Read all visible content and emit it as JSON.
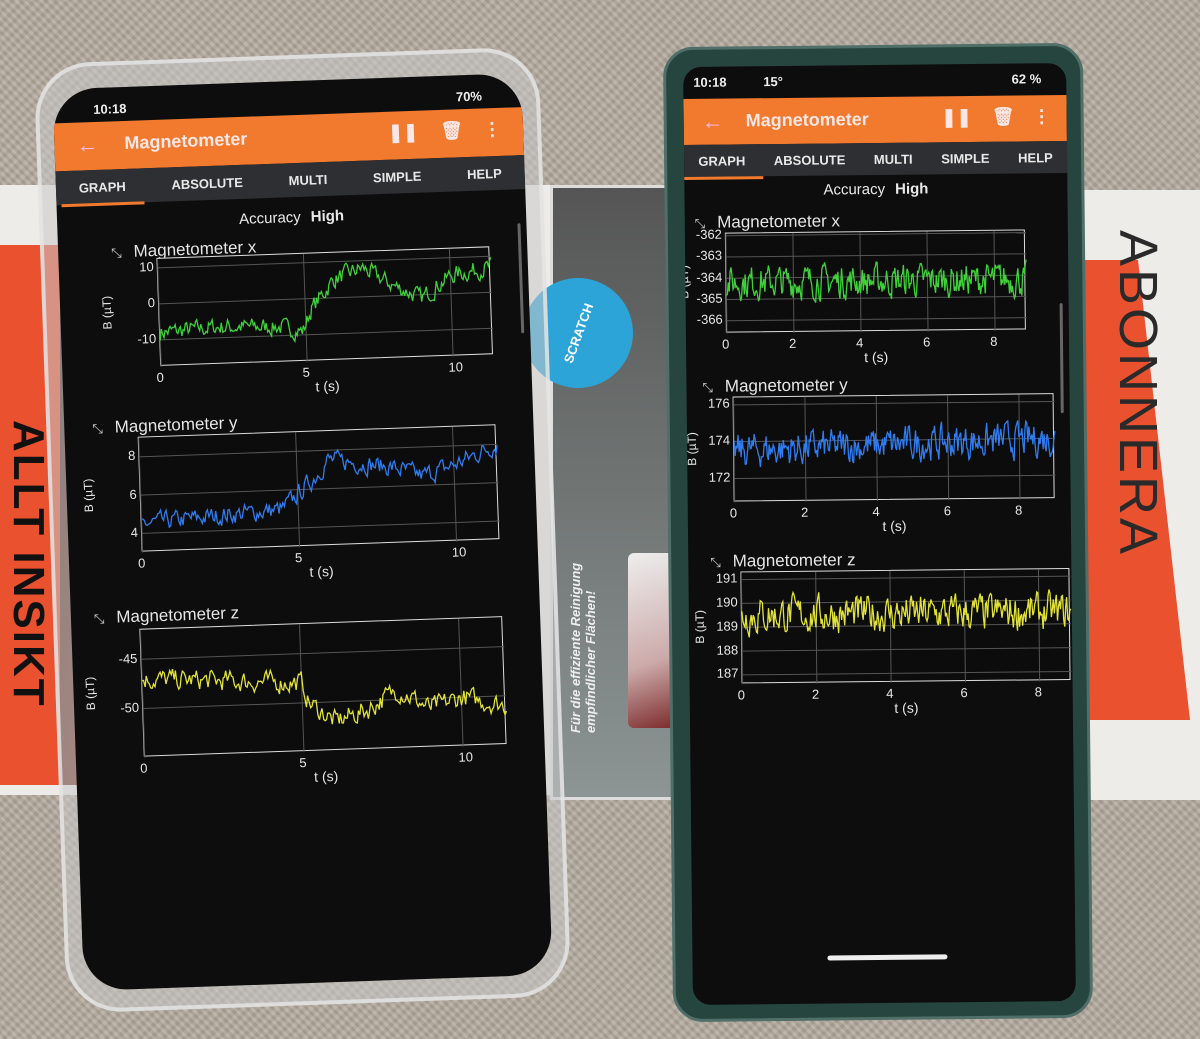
{
  "background": {
    "book_left_text": "ALLT INSIKT",
    "book_right_text": "ABONNERA",
    "cloth_badge": "SCRATCH",
    "cloth_text": "Für die effiziente Reinigung empfindlicher Flächen!"
  },
  "phones": [
    {
      "status_time": "10:18",
      "status_right": "70%",
      "toolbar": {
        "title": "Magnetometer",
        "back_icon": "arrow-left",
        "pause_icon": "pause",
        "delete_icon": "trash",
        "menu_icon": "more-vertical"
      },
      "tabs": [
        "GRAPH",
        "ABSOLUTE",
        "MULTI",
        "SIMPLE",
        "HELP"
      ],
      "active_tab": "GRAPH",
      "accuracy_label": "Accuracy",
      "accuracy_value": "High",
      "charts": [
        {
          "title": "Magnetometer x",
          "ylabel": "B (µT)",
          "xlabel": "t (s)",
          "color": "#3fd13a",
          "xticks": [
            0,
            5,
            10
          ],
          "yticks": [
            10,
            0,
            -10
          ],
          "xlim": [
            0,
            11.4
          ],
          "ylim": [
            -17.5,
            12.5
          ],
          "trend": [
            [
              0,
              -8
            ],
            [
              2,
              -7
            ],
            [
              4,
              -7.5
            ],
            [
              4.9,
              -9
            ],
            [
              5.2,
              -3
            ],
            [
              6,
              5
            ],
            [
              7,
              8
            ],
            [
              8,
              3
            ],
            [
              9,
              -1
            ],
            [
              10,
              5
            ],
            [
              11.4,
              7
            ]
          ]
        },
        {
          "title": "Magnetometer y",
          "ylabel": "B (µT)",
          "xlabel": "t (s)",
          "color": "#2f7cf0",
          "xticks": [
            0,
            5,
            10
          ],
          "yticks": [
            8,
            6,
            4
          ],
          "xlim": [
            0,
            11.4
          ],
          "ylim": [
            3,
            9
          ],
          "trend": [
            [
              0,
              4.5
            ],
            [
              4.5,
              5
            ],
            [
              5.5,
              6.5
            ],
            [
              6,
              7.5
            ],
            [
              8,
              7
            ],
            [
              9,
              6.5
            ],
            [
              10,
              7
            ],
            [
              11.4,
              8
            ]
          ]
        },
        {
          "title": "Magnetometer z",
          "ylabel": "B (µT)",
          "xlabel": "t (s)",
          "color": "#e2e23a",
          "xticks": [
            0,
            5,
            10
          ],
          "yticks": [
            -45,
            -50
          ],
          "xlim": [
            0,
            11.4
          ],
          "ylim": [
            -55,
            -42
          ],
          "trend": [
            [
              0,
              -47
            ],
            [
              5,
              -48
            ],
            [
              5.2,
              -50
            ],
            [
              6,
              -52
            ],
            [
              7,
              -51
            ],
            [
              8,
              -49
            ],
            [
              9,
              -51
            ],
            [
              10,
              -50
            ],
            [
              11.4,
              -51
            ]
          ]
        }
      ]
    },
    {
      "status_time": "10:18",
      "status_extra": "15°",
      "status_right": "62 %",
      "toolbar": {
        "title": "Magnetometer",
        "back_icon": "arrow-left",
        "pause_icon": "pause",
        "delete_icon": "trash",
        "menu_icon": "more-vertical"
      },
      "tabs": [
        "GRAPH",
        "ABSOLUTE",
        "MULTI",
        "SIMPLE",
        "HELP"
      ],
      "active_tab": "GRAPH",
      "accuracy_label": "Accuracy",
      "accuracy_value": "High",
      "charts": [
        {
          "title": "Magnetometer x",
          "ylabel": "B (µT)",
          "xlabel": "t (s)",
          "color": "#3fd13a",
          "xticks": [
            0,
            2,
            4,
            6,
            8
          ],
          "yticks": [
            -362,
            -363,
            -364,
            -365,
            -366
          ],
          "xlim": [
            0,
            8.95
          ],
          "ylim": [
            -366.6,
            -361.9
          ],
          "trend": [
            [
              0,
              -364.2
            ],
            [
              8.95,
              -364.2
            ]
          ]
        },
        {
          "title": "Magnetometer y",
          "ylabel": "B (µT)",
          "xlabel": "t (s)",
          "color": "#2f7cf0",
          "xticks": [
            0,
            2,
            4,
            6,
            8
          ],
          "yticks": [
            176,
            174,
            172
          ],
          "xlim": [
            0,
            9
          ],
          "ylim": [
            170.7,
            176.4
          ],
          "trend": [
            [
              0,
              173.5
            ],
            [
              9,
              174
            ]
          ]
        },
        {
          "title": "Magnetometer z",
          "ylabel": "B (µT)",
          "xlabel": "t (s)",
          "color": "#e2e23a",
          "xticks": [
            0,
            2,
            4,
            6,
            8
          ],
          "yticks": [
            191,
            190,
            189,
            188,
            187
          ],
          "xlim": [
            0,
            8.86
          ],
          "ylim": [
            186.6,
            191.3
          ],
          "trend": [
            [
              0,
              189.5
            ],
            [
              8.86,
              189.5
            ]
          ]
        }
      ]
    }
  ]
}
